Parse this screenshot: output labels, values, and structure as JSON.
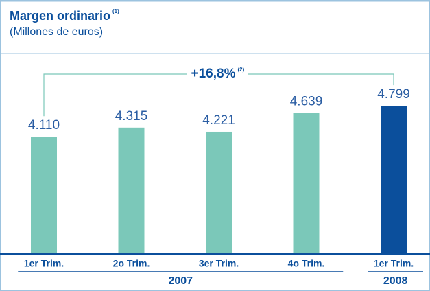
{
  "chart_data": {
    "type": "bar",
    "title": "Margen ordinario",
    "title_note": "(1)",
    "subtitle": "(Millones de euros)",
    "categories": [
      "1er Trim.",
      "2o Trim.",
      "3er Trim.",
      "4o Trim.",
      "1er Trim."
    ],
    "groups": [
      {
        "label": "2007",
        "count": 4
      },
      {
        "label": "2008",
        "count": 1
      }
    ],
    "values": [
      4110,
      4315,
      4221,
      4639,
      4799
    ],
    "value_labels": [
      "4.110",
      "4.315",
      "4.221",
      "4.639",
      "4.799"
    ],
    "colors": [
      "#7bc8b9",
      "#7bc8b9",
      "#7bc8b9",
      "#7bc8b9",
      "#0b4f9c"
    ],
    "ylim": [
      1500,
      5000
    ],
    "annotation": "+16,8%",
    "annotation_note": "(2)"
  }
}
